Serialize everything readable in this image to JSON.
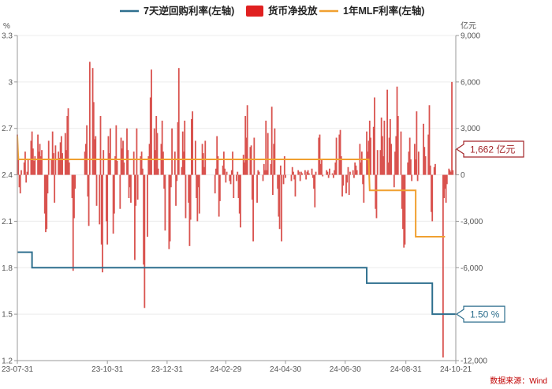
{
  "chart_data": {
    "type": "bar+line",
    "left_unit": "%",
    "right_unit": "亿元",
    "source": "数据来源：Wind",
    "legend": [
      {
        "name": "7天逆回购利率(左轴)",
        "color": "#2e6f8e",
        "kind": "line"
      },
      {
        "name": "货币净投放",
        "color": "#e02020",
        "kind": "rect"
      },
      {
        "name": "1年MLF利率(左轴)",
        "color": "#f0a030",
        "kind": "line"
      }
    ],
    "left_axis": {
      "min": 1.2,
      "max": 3.3,
      "ticks": [
        "1.2",
        "1.5",
        "1.8",
        "2.1",
        "2.4",
        "2.7",
        "3",
        "3.3"
      ]
    },
    "right_axis": {
      "min": -12000,
      "max": 9000,
      "ticks": [
        "-12,000",
        "-9,000",
        "-6,000",
        "-3,000",
        "0",
        "3,000",
        "6,000",
        "9,000"
      ]
    },
    "x_axis": {
      "start": "2023-07-31",
      "end": "2024-10-21",
      "ticks": [
        "23-07-31",
        "23-10-31",
        "23-12-31",
        "24-02-29",
        "24-04-30",
        "24-06-30",
        "24-08-31",
        "24-10-21"
      ]
    },
    "reverse_repo_7d": [
      {
        "x": "2023-07-31",
        "y": 1.9
      },
      {
        "x": "2023-08-15",
        "y": 1.9
      },
      {
        "x": "2023-08-15",
        "y": 1.8
      },
      {
        "x": "2024-07-22",
        "y": 1.8
      },
      {
        "x": "2024-07-22",
        "y": 1.7
      },
      {
        "x": "2024-09-27",
        "y": 1.7
      },
      {
        "x": "2024-09-27",
        "y": 1.5
      },
      {
        "x": "2024-10-21",
        "y": 1.5
      }
    ],
    "mlf_1y": [
      {
        "x": "2023-07-31",
        "y": 2.65
      },
      {
        "x": "2023-08-01",
        "y": 2.5
      },
      {
        "x": "2024-07-24",
        "y": 2.5
      },
      {
        "x": "2024-07-25",
        "y": 2.3
      },
      {
        "x": "2024-09-10",
        "y": 2.3
      },
      {
        "x": "2024-09-10",
        "y": 2.0
      },
      {
        "x": "2024-10-10",
        "y": 2.0
      }
    ],
    "net_injection": [
      [
        "2023-07-31",
        2600
      ],
      [
        "2023-08-01",
        1200
      ],
      [
        "2023-08-02",
        -800
      ],
      [
        "2023-08-03",
        -1200
      ],
      [
        "2023-08-04",
        300
      ],
      [
        "2023-08-07",
        800
      ],
      [
        "2023-08-08",
        1500
      ],
      [
        "2023-08-09",
        -500
      ],
      [
        "2023-08-10",
        200
      ],
      [
        "2023-08-11",
        1000
      ],
      [
        "2023-08-14",
        2200
      ],
      [
        "2023-08-15",
        2800
      ],
      [
        "2023-08-16",
        1700
      ],
      [
        "2023-08-17",
        900
      ],
      [
        "2023-08-18",
        1200
      ],
      [
        "2023-08-21",
        2600
      ],
      [
        "2023-08-22",
        1500
      ],
      [
        "2023-08-23",
        2000
      ],
      [
        "2023-08-24",
        1200
      ],
      [
        "2023-08-25",
        1600
      ],
      [
        "2023-08-28",
        -2500
      ],
      [
        "2023-08-29",
        -3700
      ],
      [
        "2023-08-30",
        -3500
      ],
      [
        "2023-08-31",
        -1200
      ],
      [
        "2023-09-01",
        2200
      ],
      [
        "2023-09-04",
        1000
      ],
      [
        "2023-09-05",
        2800
      ],
      [
        "2023-09-06",
        1400
      ],
      [
        "2023-09-07",
        -1800
      ],
      [
        "2023-09-08",
        1900
      ],
      [
        "2023-09-11",
        1500
      ],
      [
        "2023-09-12",
        1100
      ],
      [
        "2023-09-13",
        2100
      ],
      [
        "2023-09-14",
        2500
      ],
      [
        "2023-09-15",
        1400
      ],
      [
        "2023-09-18",
        2700
      ],
      [
        "2023-09-19",
        1600
      ],
      [
        "2023-09-20",
        3800
      ],
      [
        "2023-09-21",
        4300
      ],
      [
        "2023-09-22",
        800
      ],
      [
        "2023-09-25",
        -1500
      ],
      [
        "2023-09-26",
        -6200
      ],
      [
        "2023-09-27",
        -2800
      ],
      [
        "2023-09-28",
        -900
      ],
      [
        "2023-10-08",
        1500
      ],
      [
        "2023-10-09",
        2000
      ],
      [
        "2023-10-10",
        3200
      ],
      [
        "2023-10-11",
        -1400
      ],
      [
        "2023-10-12",
        -3300
      ],
      [
        "2023-10-13",
        7300
      ],
      [
        "2023-10-16",
        6900
      ],
      [
        "2023-10-17",
        4700
      ],
      [
        "2023-10-18",
        2300
      ],
      [
        "2023-10-19",
        2500
      ],
      [
        "2023-10-20",
        -2000
      ],
      [
        "2023-10-23",
        -3200
      ],
      [
        "2023-10-24",
        3800
      ],
      [
        "2023-10-25",
        -4500
      ],
      [
        "2023-10-26",
        -6300
      ],
      [
        "2023-10-27",
        1600
      ],
      [
        "2023-10-30",
        -3000
      ],
      [
        "2023-10-31",
        -4500
      ],
      [
        "2023-11-01",
        2500
      ],
      [
        "2023-11-02",
        1400
      ],
      [
        "2023-11-03",
        3000
      ],
      [
        "2023-11-06",
        -3800
      ],
      [
        "2023-11-07",
        -2500
      ],
      [
        "2023-11-08",
        1200
      ],
      [
        "2023-11-09",
        3200
      ],
      [
        "2023-11-10",
        900
      ],
      [
        "2023-11-13",
        -2200
      ],
      [
        "2023-11-14",
        2400
      ],
      [
        "2023-11-15",
        1700
      ],
      [
        "2023-11-16",
        2200
      ],
      [
        "2023-11-17",
        800
      ],
      [
        "2023-11-20",
        3000
      ],
      [
        "2023-11-21",
        1600
      ],
      [
        "2023-11-22",
        -1500
      ],
      [
        "2023-11-23",
        -800
      ],
      [
        "2023-11-24",
        -1800
      ],
      [
        "2023-11-27",
        1500
      ],
      [
        "2023-11-28",
        -5500
      ],
      [
        "2023-11-29",
        -2000
      ],
      [
        "2023-11-30",
        3000
      ],
      [
        "2023-12-01",
        -1600
      ],
      [
        "2023-12-04",
        1200
      ],
      [
        "2023-12-05",
        1500
      ],
      [
        "2023-12-06",
        400
      ],
      [
        "2023-12-07",
        -5800
      ],
      [
        "2023-12-08",
        -8600
      ],
      [
        "2023-12-11",
        -4000
      ],
      [
        "2023-12-12",
        1200
      ],
      [
        "2023-12-13",
        2000
      ],
      [
        "2023-12-14",
        5000
      ],
      [
        "2023-12-15",
        6800
      ],
      [
        "2023-12-18",
        3000
      ],
      [
        "2023-12-19",
        1600
      ],
      [
        "2023-12-20",
        3800
      ],
      [
        "2023-12-21",
        2700
      ],
      [
        "2023-12-22",
        400
      ],
      [
        "2023-12-25",
        2000
      ],
      [
        "2023-12-26",
        3500
      ],
      [
        "2023-12-27",
        1500
      ],
      [
        "2023-12-28",
        -900
      ],
      [
        "2023-12-29",
        -3600
      ],
      [
        "2024-01-02",
        -4800
      ],
      [
        "2024-01-03",
        -4300
      ],
      [
        "2024-01-04",
        -800
      ],
      [
        "2024-01-05",
        3000
      ],
      [
        "2024-01-08",
        1500
      ],
      [
        "2024-01-09",
        -2000
      ],
      [
        "2024-01-10",
        -400
      ],
      [
        "2024-01-11",
        3400
      ],
      [
        "2024-01-12",
        6900
      ],
      [
        "2024-01-15",
        500
      ],
      [
        "2024-01-16",
        2800
      ],
      [
        "2024-01-17",
        1500
      ],
      [
        "2024-01-18",
        3500
      ],
      [
        "2024-01-19",
        -2800
      ],
      [
        "2024-01-22",
        -1800
      ],
      [
        "2024-01-23",
        -4600
      ],
      [
        "2024-01-24",
        -2900
      ],
      [
        "2024-01-25",
        3600
      ],
      [
        "2024-01-26",
        4100
      ],
      [
        "2024-01-29",
        2200
      ],
      [
        "2024-01-30",
        -1500
      ],
      [
        "2024-01-31",
        -3000
      ],
      [
        "2024-02-01",
        -800
      ],
      [
        "2024-02-02",
        -2500
      ],
      [
        "2024-02-05",
        2000
      ],
      [
        "2024-02-06",
        1400
      ],
      [
        "2024-02-07",
        500
      ],
      [
        "2024-02-08",
        2200
      ],
      [
        "2024-02-18",
        -1200
      ],
      [
        "2024-02-19",
        400
      ],
      [
        "2024-02-20",
        2500
      ],
      [
        "2024-02-21",
        1200
      ],
      [
        "2024-02-22",
        -2700
      ],
      [
        "2024-02-23",
        -1700
      ],
      [
        "2024-02-26",
        600
      ],
      [
        "2024-02-27",
        1500
      ],
      [
        "2024-02-28",
        400
      ],
      [
        "2024-02-29",
        -500
      ],
      [
        "2024-03-01",
        200
      ],
      [
        "2024-03-04",
        -400
      ],
      [
        "2024-03-05",
        -600
      ],
      [
        "2024-03-06",
        300
      ],
      [
        "2024-03-07",
        1500
      ],
      [
        "2024-03-08",
        -1500
      ],
      [
        "2024-03-11",
        -400
      ],
      [
        "2024-03-12",
        200
      ],
      [
        "2024-03-13",
        -1500
      ],
      [
        "2024-03-14",
        -2500
      ],
      [
        "2024-03-15",
        -3400
      ],
      [
        "2024-03-18",
        1300
      ],
      [
        "2024-03-19",
        800
      ],
      [
        "2024-03-20",
        3800
      ],
      [
        "2024-03-21",
        2400
      ],
      [
        "2024-03-22",
        4500
      ],
      [
        "2024-03-25",
        1800
      ],
      [
        "2024-03-26",
        1900
      ],
      [
        "2024-03-27",
        -1600
      ],
      [
        "2024-03-28",
        -4300
      ],
      [
        "2024-03-29",
        2400
      ],
      [
        "2024-04-01",
        -1800
      ],
      [
        "2024-04-02",
        300
      ],
      [
        "2024-04-03",
        200
      ],
      [
        "2024-04-07",
        -400
      ],
      [
        "2024-04-08",
        700
      ],
      [
        "2024-04-09",
        300
      ],
      [
        "2024-04-10",
        3500
      ],
      [
        "2024-04-11",
        300
      ],
      [
        "2024-04-12",
        2700
      ],
      [
        "2024-04-15",
        700
      ],
      [
        "2024-04-16",
        4400
      ],
      [
        "2024-04-17",
        -1300
      ],
      [
        "2024-04-18",
        2000
      ],
      [
        "2024-04-19",
        3000
      ],
      [
        "2024-04-22",
        -900
      ],
      [
        "2024-04-23",
        -2700
      ],
      [
        "2024-04-24",
        -3500
      ],
      [
        "2024-04-25",
        600
      ],
      [
        "2024-04-26",
        -4300
      ],
      [
        "2024-04-28",
        -600
      ],
      [
        "2024-04-29",
        1200
      ],
      [
        "2024-04-30",
        -200
      ],
      [
        "2024-05-06",
        -400
      ],
      [
        "2024-05-07",
        500
      ],
      [
        "2024-05-08",
        200
      ],
      [
        "2024-05-09",
        -300
      ],
      [
        "2024-05-10",
        -1400
      ],
      [
        "2024-05-13",
        300
      ],
      [
        "2024-05-14",
        200
      ],
      [
        "2024-05-15",
        -400
      ],
      [
        "2024-05-16",
        200
      ],
      [
        "2024-05-17",
        100
      ],
      [
        "2024-05-20",
        300
      ],
      [
        "2024-05-21",
        -300
      ],
      [
        "2024-05-22",
        200
      ],
      [
        "2024-05-23",
        300
      ],
      [
        "2024-05-24",
        100
      ],
      [
        "2024-05-27",
        400
      ],
      [
        "2024-05-28",
        -200
      ],
      [
        "2024-05-29",
        -900
      ],
      [
        "2024-05-30",
        -2100
      ],
      [
        "2024-05-31",
        200
      ],
      [
        "2024-06-03",
        2400
      ],
      [
        "2024-06-04",
        2600
      ],
      [
        "2024-06-05",
        700
      ],
      [
        "2024-06-06",
        1000
      ],
      [
        "2024-06-07",
        -100
      ],
      [
        "2024-06-11",
        300
      ],
      [
        "2024-06-12",
        200
      ],
      [
        "2024-06-13",
        -200
      ],
      [
        "2024-06-14",
        400
      ],
      [
        "2024-06-17",
        100
      ],
      [
        "2024-06-18",
        -200
      ],
      [
        "2024-06-19",
        300
      ],
      [
        "2024-06-20",
        800
      ],
      [
        "2024-06-21",
        2400
      ],
      [
        "2024-06-24",
        2600
      ],
      [
        "2024-06-25",
        2900
      ],
      [
        "2024-06-26",
        1200
      ],
      [
        "2024-06-27",
        -1400
      ],
      [
        "2024-06-28",
        -700
      ],
      [
        "2024-07-01",
        -1200
      ],
      [
        "2024-07-02",
        -500
      ],
      [
        "2024-07-03",
        500
      ],
      [
        "2024-07-04",
        -1300
      ],
      [
        "2024-07-05",
        200
      ],
      [
        "2024-07-08",
        300
      ],
      [
        "2024-07-09",
        -200
      ],
      [
        "2024-07-10",
        800
      ],
      [
        "2024-07-11",
        600
      ],
      [
        "2024-07-12",
        300
      ],
      [
        "2024-07-15",
        2000
      ],
      [
        "2024-07-16",
        800
      ],
      [
        "2024-07-17",
        1500
      ],
      [
        "2024-07-18",
        -600
      ],
      [
        "2024-07-19",
        -1800
      ],
      [
        "2024-07-22",
        2800
      ],
      [
        "2024-07-23",
        1500
      ],
      [
        "2024-07-24",
        2200
      ],
      [
        "2024-07-25",
        3500
      ],
      [
        "2024-07-26",
        2400
      ],
      [
        "2024-07-29",
        3100
      ],
      [
        "2024-07-30",
        5000
      ],
      [
        "2024-07-31",
        -2200
      ],
      [
        "2024-08-01",
        -2800
      ],
      [
        "2024-08-02",
        1600
      ],
      [
        "2024-08-05",
        1600
      ],
      [
        "2024-08-06",
        3700
      ],
      [
        "2024-08-07",
        2500
      ],
      [
        "2024-08-08",
        1200
      ],
      [
        "2024-08-09",
        3500
      ],
      [
        "2024-08-12",
        5500
      ],
      [
        "2024-08-13",
        800
      ],
      [
        "2024-08-14",
        2400
      ],
      [
        "2024-08-15",
        3600
      ],
      [
        "2024-08-16",
        2000
      ],
      [
        "2024-08-19",
        -800
      ],
      [
        "2024-08-20",
        1500
      ],
      [
        "2024-08-21",
        2500
      ],
      [
        "2024-08-22",
        5700
      ],
      [
        "2024-08-23",
        3800
      ],
      [
        "2024-08-26",
        2800
      ],
      [
        "2024-08-27",
        -2200
      ],
      [
        "2024-08-28",
        -3500
      ],
      [
        "2024-08-29",
        -4700
      ],
      [
        "2024-08-30",
        -4500
      ],
      [
        "2024-09-02",
        800
      ],
      [
        "2024-09-03",
        1500
      ],
      [
        "2024-09-04",
        2400
      ],
      [
        "2024-09-05",
        1000
      ],
      [
        "2024-09-06",
        -400
      ],
      [
        "2024-09-09",
        2000
      ],
      [
        "2024-09-10",
        1000
      ],
      [
        "2024-09-11",
        4100
      ],
      [
        "2024-09-12",
        -400
      ],
      [
        "2024-09-13",
        1500
      ],
      [
        "2024-09-18",
        3300
      ],
      [
        "2024-09-19",
        1800
      ],
      [
        "2024-09-20",
        1200
      ],
      [
        "2024-09-23",
        2600
      ],
      [
        "2024-09-24",
        4500
      ],
      [
        "2024-09-25",
        600
      ],
      [
        "2024-09-26",
        -2400
      ],
      [
        "2024-09-27",
        -3000
      ],
      [
        "2024-09-29",
        500
      ],
      [
        "2024-09-30",
        700
      ],
      [
        "2024-10-08",
        -11800
      ],
      [
        "2024-10-09",
        -1500
      ],
      [
        "2024-10-10",
        -900
      ],
      [
        "2024-10-11",
        -1800
      ],
      [
        "2024-10-12",
        -600
      ],
      [
        "2024-10-14",
        400
      ],
      [
        "2024-10-15",
        300
      ],
      [
        "2024-10-16",
        200
      ],
      [
        "2024-10-17",
        6000
      ],
      [
        "2024-10-18",
        300
      ],
      [
        "2024-10-21",
        1662
      ]
    ],
    "callouts": [
      {
        "text": "1,662 亿元",
        "value": 1662,
        "axis": "right",
        "color": "#a3262a"
      },
      {
        "text": "1.50 %",
        "value": 1.5,
        "axis": "left",
        "color": "#2e6f8e"
      }
    ]
  }
}
